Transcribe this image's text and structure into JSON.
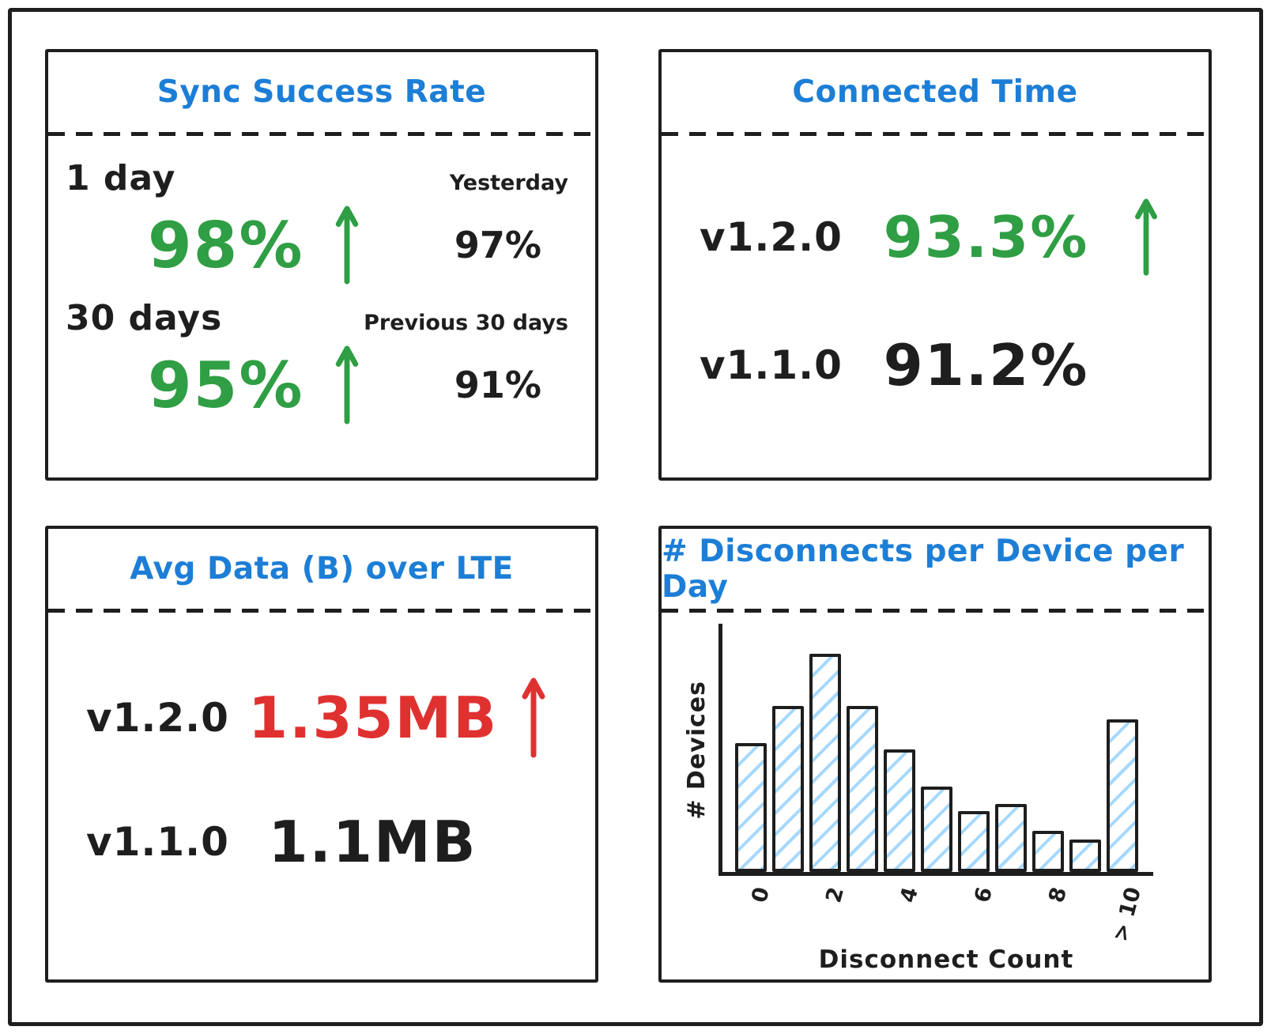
{
  "dashboard": {
    "panels": {
      "sync": {
        "title": "Sync Success Rate",
        "metrics": [
          {
            "period": "1 day",
            "value": "98%",
            "trend": "up",
            "value_color": "#2f9e44",
            "compare_label": "Yesterday",
            "compare_value": "97%"
          },
          {
            "period": "30 days",
            "value": "95%",
            "trend": "up",
            "value_color": "#2f9e44",
            "compare_label": "Previous 30 days",
            "compare_value": "91%"
          }
        ]
      },
      "connected": {
        "title": "Connected Time",
        "rows": [
          {
            "version": "v1.2.0",
            "value": "93.3%",
            "trend": "up",
            "value_color": "#2f9e44"
          },
          {
            "version": "v1.1.0",
            "value": "91.2%",
            "trend": "none",
            "value_color": "#1e1e1e"
          }
        ]
      },
      "avg_data": {
        "title": "Avg Data (B) over LTE",
        "rows": [
          {
            "version": "v1.2.0",
            "value": "1.35MB",
            "trend": "up",
            "value_color": "#e03131"
          },
          {
            "version": "v1.1.0",
            "value": "1.1MB",
            "trend": "none",
            "value_color": "#1e1e1e"
          }
        ]
      },
      "disconnects": {
        "title": "# Disconnects per Device per Day"
      }
    }
  },
  "chart_data": {
    "type": "bar",
    "title": "# Disconnects per Device per Day",
    "categories": [
      "0",
      "1",
      "2",
      "3",
      "4",
      "5",
      "6",
      "7",
      "8",
      "9",
      "> 10"
    ],
    "values": [
      59,
      76,
      100,
      76,
      56,
      39,
      28,
      31,
      19,
      15,
      70
    ],
    "xlabel": "Disconnect Count",
    "ylabel": "# Devices",
    "ylim": [
      0,
      100
    ],
    "y_ticks": "none",
    "x_ticks_shown_at": [
      0,
      2,
      4,
      6,
      8,
      10
    ],
    "legend": "none",
    "grid": false,
    "bar_fill": "white with light-blue diagonal hatch",
    "bar_border_color": "#1e1e1e",
    "hatch_color": "#a5d8ff"
  },
  "colors": {
    "accent_blue": "#1c7ed6",
    "positive_green": "#2f9e44",
    "negative_red": "#e03131",
    "ink_black": "#1e1e1e",
    "hatch_blue": "#a5d8ff",
    "background": "#ffffff"
  }
}
